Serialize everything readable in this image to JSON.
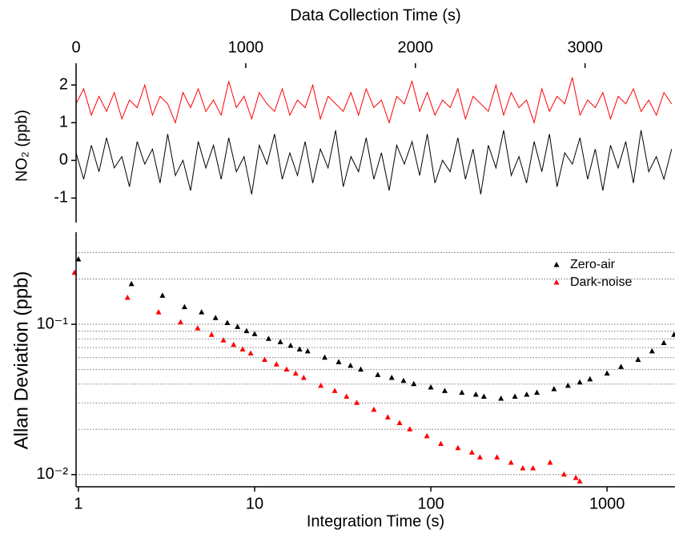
{
  "chart_data": [
    {
      "type": "line",
      "xlabel": "Data Collection Time (s)",
      "ylabel": "NO₂ (ppb)",
      "x": [
        0,
        45,
        90,
        135,
        180,
        225,
        270,
        315,
        360,
        405,
        450,
        495,
        540,
        585,
        630,
        675,
        720,
        765,
        810,
        855,
        900,
        945,
        990,
        1035,
        1080,
        1125,
        1170,
        1215,
        1260,
        1305,
        1350,
        1395,
        1440,
        1485,
        1530,
        1575,
        1620,
        1665,
        1710,
        1755,
        1800,
        1845,
        1890,
        1935,
        1980,
        2025,
        2070,
        2115,
        2160,
        2205,
        2250,
        2295,
        2340,
        2385,
        2430,
        2475,
        2520,
        2565,
        2610,
        2655,
        2700,
        2745,
        2790,
        2835,
        2880,
        2925,
        2970,
        3015,
        3060,
        3105,
        3150,
        3195,
        3240,
        3285,
        3330,
        3375,
        3420,
        3465,
        3510
      ],
      "series": [
        {
          "name": "Dark-noise",
          "color": "#ff0000",
          "values": [
            1.5,
            1.9,
            1.2,
            1.7,
            1.3,
            1.8,
            1.1,
            1.6,
            1.4,
            2.0,
            1.2,
            1.7,
            1.5,
            1.0,
            1.8,
            1.4,
            1.9,
            1.3,
            1.6,
            1.2,
            2.1,
            1.4,
            1.7,
            1.1,
            1.8,
            1.5,
            1.3,
            1.9,
            1.2,
            1.6,
            1.4,
            2.0,
            1.1,
            1.7,
            1.5,
            1.3,
            1.8,
            1.2,
            1.9,
            1.4,
            1.6,
            1.0,
            1.7,
            1.5,
            2.1,
            1.3,
            1.8,
            1.2,
            1.6,
            1.4,
            1.9,
            1.1,
            1.7,
            1.5,
            1.3,
            2.0,
            1.2,
            1.8,
            1.4,
            1.6,
            1.0,
            1.9,
            1.3,
            1.7,
            1.5,
            2.2,
            1.2,
            1.6,
            1.4,
            1.8,
            1.1,
            1.7,
            1.5,
            1.9,
            1.3,
            1.6,
            1.2,
            1.8,
            1.5
          ]
        },
        {
          "name": "Zero-air",
          "color": "#000000",
          "values": [
            0.2,
            -0.5,
            0.4,
            -0.3,
            0.6,
            -0.2,
            0.1,
            -0.7,
            0.5,
            -0.1,
            0.3,
            -0.6,
            0.7,
            -0.4,
            0.0,
            -0.8,
            0.5,
            -0.2,
            0.4,
            -0.5,
            0.6,
            -0.3,
            0.1,
            -0.9,
            0.4,
            -0.1,
            0.7,
            -0.5,
            0.2,
            -0.4,
            0.5,
            -0.6,
            0.3,
            -0.2,
            0.8,
            -0.7,
            0.1,
            -0.3,
            0.6,
            -0.5,
            0.2,
            -0.8,
            0.4,
            -0.1,
            0.5,
            -0.4,
            0.7,
            -0.6,
            0.0,
            -0.3,
            0.6,
            -0.5,
            0.3,
            -0.9,
            0.4,
            -0.2,
            0.8,
            -0.4,
            0.1,
            -0.6,
            0.5,
            -0.3,
            0.7,
            -0.7,
            0.2,
            -0.1,
            0.6,
            -0.5,
            0.3,
            -0.8,
            0.4,
            -0.2,
            0.5,
            -0.6,
            0.8,
            -0.3,
            0.1,
            -0.5,
            0.3
          ]
        }
      ],
      "xlim": [
        0,
        3530
      ],
      "ylim": [
        -1.65,
        2.45
      ],
      "xticks": [
        0,
        1000,
        2000,
        3000
      ],
      "yticks": [
        -1,
        0,
        1,
        2
      ]
    },
    {
      "type": "scatter",
      "xlabel": "Integration Time (s)",
      "ylabel": "Allan Deviation (ppb)",
      "xscale": "log",
      "yscale": "log",
      "grid": true,
      "legend": "upper right",
      "series": [
        {
          "name": "Zero-air",
          "color": "#000000",
          "x": [
            1,
            2,
            3,
            4,
            5,
            6,
            7,
            8,
            9,
            10,
            12,
            14,
            16,
            18,
            20,
            25,
            30,
            35,
            40,
            50,
            60,
            70,
            80,
            100,
            120,
            150,
            180,
            200,
            250,
            300,
            350,
            400,
            500,
            600,
            700,
            800,
            1000,
            1200,
            1500,
            1800,
            2100,
            2400
          ],
          "values": [
            0.27,
            0.185,
            0.155,
            0.13,
            0.12,
            0.11,
            0.102,
            0.096,
            0.09,
            0.086,
            0.08,
            0.076,
            0.072,
            0.068,
            0.066,
            0.06,
            0.056,
            0.053,
            0.05,
            0.046,
            0.044,
            0.042,
            0.04,
            0.038,
            0.036,
            0.035,
            0.034,
            0.033,
            0.032,
            0.033,
            0.034,
            0.035,
            0.037,
            0.039,
            0.041,
            0.043,
            0.047,
            0.052,
            0.058,
            0.066,
            0.075,
            0.085
          ]
        },
        {
          "name": "Dark-noise",
          "color": "#ff0000",
          "x": [
            0.95,
            1.9,
            2.85,
            3.8,
            4.75,
            5.7,
            6.65,
            7.6,
            8.55,
            9.5,
            11.4,
            13.3,
            15.2,
            17.1,
            19,
            23.75,
            28.5,
            33.25,
            38,
            47.5,
            57,
            66.5,
            76,
            95,
            114,
            142.5,
            171,
            190,
            237.5,
            285,
            332.5,
            380,
            475,
            570,
            665,
            700
          ],
          "values": [
            0.22,
            0.15,
            0.12,
            0.103,
            0.094,
            0.085,
            0.078,
            0.073,
            0.068,
            0.064,
            0.058,
            0.054,
            0.05,
            0.047,
            0.044,
            0.039,
            0.036,
            0.033,
            0.03,
            0.027,
            0.024,
            0.022,
            0.02,
            0.018,
            0.016,
            0.015,
            0.014,
            0.013,
            0.013,
            0.012,
            0.011,
            0.011,
            0.012,
            0.01,
            0.0095,
            0.009
          ]
        }
      ],
      "xlim": [
        0.97,
        2430
      ],
      "ylim": [
        0.0083,
        0.41
      ],
      "xticks": [
        1,
        10,
        100,
        1000
      ],
      "yticks": [
        {
          "value": 0.01,
          "label": "10⁻²"
        },
        {
          "value": 0.1,
          "label": "10⁻¹"
        }
      ],
      "minor_yticks": [
        0.01,
        0.02,
        0.03,
        0.04,
        0.05,
        0.06,
        0.07,
        0.08,
        0.09,
        0.1,
        0.2,
        0.3
      ]
    }
  ]
}
